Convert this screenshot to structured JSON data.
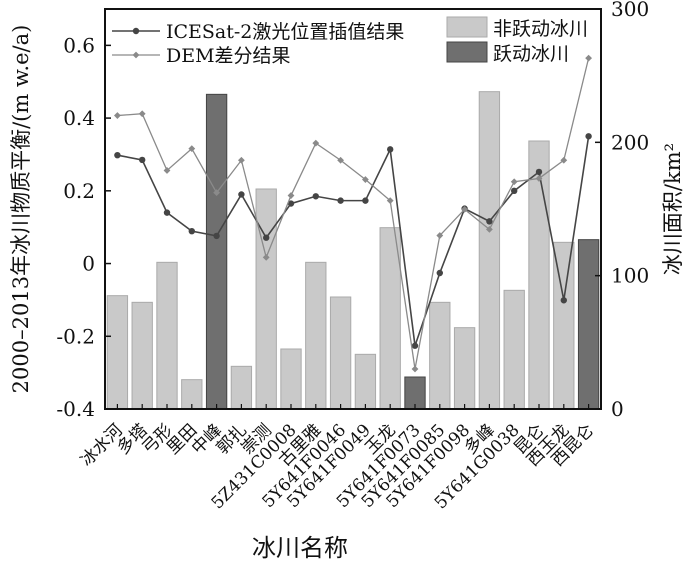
{
  "chart_data": {
    "type": "bar",
    "xlabel": "冰川名称",
    "ylabel": "2000–2013年冰川物质平衡/(m w.e/a)",
    "y2label": "冰川面积/km²",
    "ylim": [
      -0.4,
      0.7
    ],
    "y2lim": [
      0,
      300
    ],
    "yticks": [
      "-0.4",
      "-0.2",
      "0",
      "0.2",
      "0.4",
      "0.6"
    ],
    "y2ticks": [
      "0",
      "100",
      "200",
      "300"
    ],
    "legend_placement": "top",
    "categories": [
      "冰水河",
      "多塔",
      "弓形",
      "里田",
      "中峰",
      "郭扎",
      "崇测",
      "5Z431C0008",
      "古里雅",
      "5Y641F0046",
      "5Y641F0049",
      "玉龙",
      "5Y641F0073",
      "5Y641F0085",
      "5Y641F0098",
      "多峰",
      "5Y641G0038",
      "昆仑",
      "西玉龙",
      "西昆仑"
    ],
    "surging": [
      false,
      false,
      false,
      false,
      true,
      false,
      false,
      false,
      false,
      false,
      false,
      false,
      true,
      false,
      false,
      false,
      false,
      false,
      false,
      true
    ],
    "area_km2": [
      85,
      80,
      110,
      22,
      236,
      32,
      165,
      45,
      110,
      84,
      41,
      136,
      24,
      80,
      61,
      238,
      89,
      201,
      125,
      127
    ],
    "series": [
      {
        "name": "ICESat-2激光位置插值结果",
        "axis": "left",
        "values": [
          0.298,
          0.285,
          0.14,
          0.089,
          0.076,
          0.19,
          0.071,
          0.165,
          0.185,
          0.173,
          0.173,
          0.314,
          -0.226,
          -0.026,
          0.151,
          0.116,
          0.2,
          0.252,
          -0.101,
          0.35
        ]
      },
      {
        "name": "DEM差分结果",
        "axis": "left",
        "values": [
          0.407,
          0.412,
          0.256,
          0.316,
          0.195,
          0.284,
          0.017,
          0.187,
          0.331,
          0.284,
          0.231,
          0.173,
          -0.29,
          0.077,
          0.149,
          0.094,
          0.225,
          0.234,
          0.284,
          0.565
        ]
      }
    ],
    "bar_legend": [
      "非跃动冰川",
      "跃动冰川"
    ],
    "colors": {
      "line1": "#454545",
      "line2": "#8a8a8a",
      "bar": "#c9c9c9",
      "bar_surge": "#6f6f6f"
    }
  }
}
